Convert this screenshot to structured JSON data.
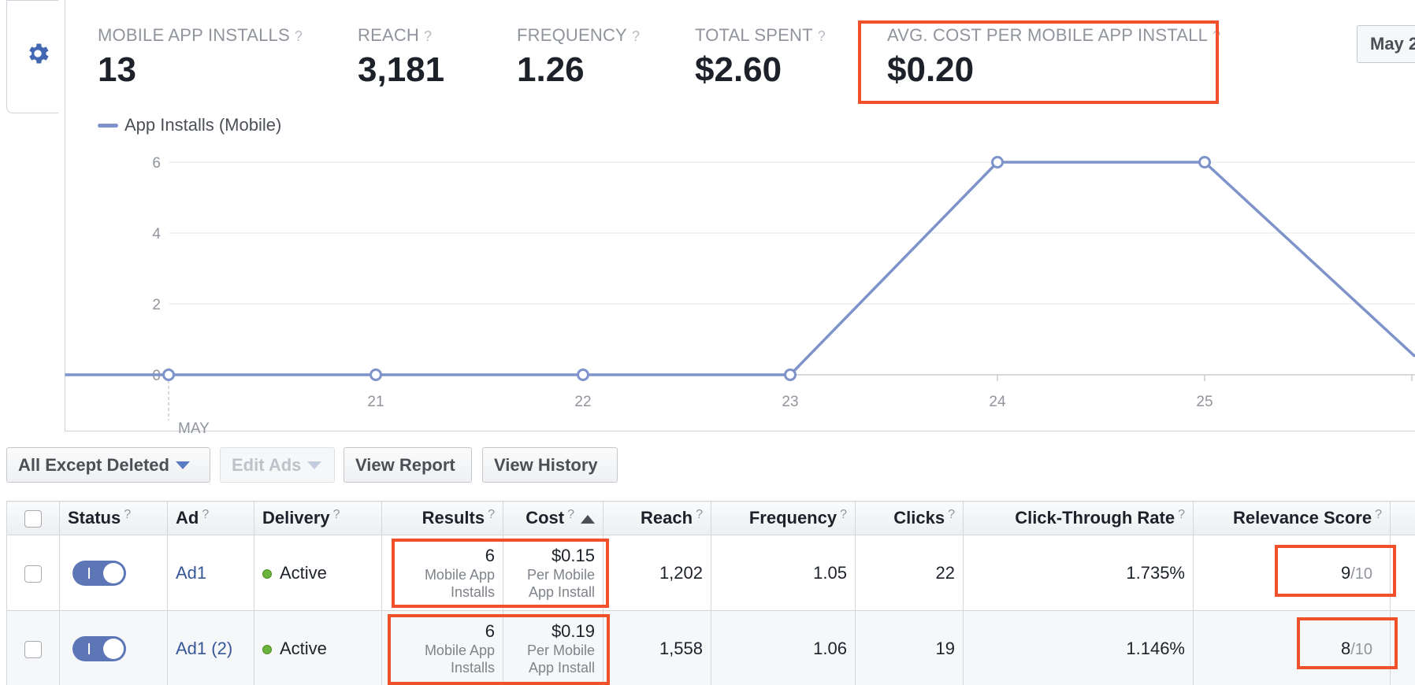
{
  "metrics": [
    {
      "label": "MOBILE APP INSTALLS",
      "value": "13"
    },
    {
      "label": "REACH",
      "value": "3,181"
    },
    {
      "label": "FREQUENCY",
      "value": "1.26"
    },
    {
      "label": "TOTAL SPENT",
      "value": "$2.60"
    },
    {
      "label": "AVG. COST PER MOBILE APP INSTALL",
      "value": "$0.20"
    }
  ],
  "help_mark": "?",
  "date_range": "May 2",
  "legend_label": "App Installs (Mobile)",
  "chart_data": {
    "type": "line",
    "series": [
      {
        "name": "App Installs (Mobile)",
        "x": [
          20,
          21,
          22,
          23,
          24,
          25
        ],
        "values": [
          0,
          0,
          0,
          0,
          6,
          6
        ]
      }
    ],
    "yticks": [
      "0",
      "2",
      "4",
      "6"
    ],
    "xticks": [
      "21",
      "22",
      "23",
      "24",
      "25"
    ],
    "month_label": "MAY",
    "ylim": [
      0,
      6
    ],
    "grid": true,
    "line_color": "#7d93c9"
  },
  "toolbar": {
    "filter_label": "All Except Deleted",
    "edit_label": "Edit Ads",
    "report_label": "View Report",
    "history_label": "View History"
  },
  "table": {
    "headers": {
      "status": "Status",
      "ad": "Ad",
      "delivery": "Delivery",
      "results": "Results",
      "cost": "Cost",
      "reach": "Reach",
      "frequency": "Frequency",
      "clicks": "Clicks",
      "ctr": "Click-Through Rate",
      "relevance": "Relevance Score"
    },
    "rows": [
      {
        "ad": "Ad1",
        "delivery": "Active",
        "results": "6",
        "results_sub": "Mobile App Installs",
        "cost": "$0.15",
        "cost_sub": "Per Mobile App Install",
        "reach": "1,202",
        "frequency": "1.05",
        "clicks": "22",
        "ctr": "1.735%",
        "score": "9",
        "score_den": "/10"
      },
      {
        "ad": "Ad1 (2)",
        "delivery": "Active",
        "results": "6",
        "results_sub": "Mobile App Installs",
        "cost": "$0.19",
        "cost_sub": "Per Mobile App Install",
        "reach": "1,558",
        "frequency": "1.06",
        "clicks": "19",
        "ctr": "1.146%",
        "score": "8",
        "score_den": "/10"
      }
    ]
  },
  "highlight_color": "#f0512b"
}
